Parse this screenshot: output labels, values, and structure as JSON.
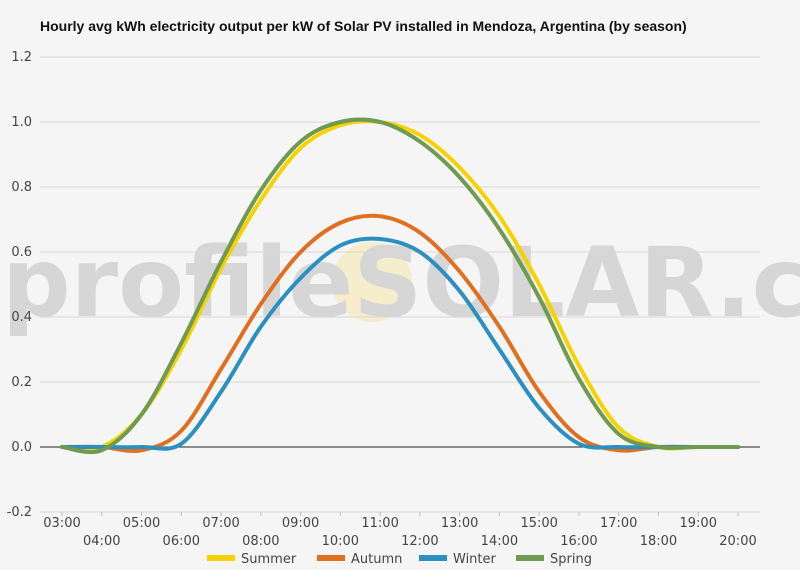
{
  "chart_data": {
    "type": "line",
    "title": "Hourly avg kWh electricity output per kW of Solar PV installed in Mendoza, Argentina (by season)",
    "xlabel": "",
    "ylabel": "",
    "x_ticks_upper": [
      "03:00",
      "05:00",
      "07:00",
      "09:00",
      "11:00",
      "13:00",
      "15:00",
      "17:00",
      "19:00"
    ],
    "x_ticks_lower": [
      "04:00",
      "06:00",
      "08:00",
      "10:00",
      "12:00",
      "14:00",
      "16:00",
      "18:00",
      "20:00"
    ],
    "y_ticks": [
      "-0.2",
      "0.0",
      "0.2",
      "0.4",
      "0.6",
      "0.8",
      "1.0",
      "1.2"
    ],
    "ylim": [
      -0.2,
      1.2
    ],
    "xlim": [
      3,
      20
    ],
    "grid": true,
    "legend_position": "bottom",
    "watermark": "profileSOLAR.com",
    "x": [
      3,
      4,
      5,
      6,
      7,
      8,
      9,
      10,
      11,
      12,
      13,
      14,
      15,
      16,
      17,
      18,
      19,
      20
    ],
    "series": [
      {
        "name": "Summer",
        "color": "#f5d300",
        "values": [
          0.0,
          0.0,
          0.1,
          0.3,
          0.55,
          0.76,
          0.92,
          0.99,
          1.0,
          0.96,
          0.86,
          0.71,
          0.5,
          0.25,
          0.06,
          0.0,
          0.0,
          0.0
        ]
      },
      {
        "name": "Autumn",
        "color": "#e07020",
        "values": [
          0.0,
          0.0,
          -0.01,
          0.05,
          0.24,
          0.44,
          0.6,
          0.69,
          0.71,
          0.66,
          0.54,
          0.37,
          0.17,
          0.03,
          -0.01,
          0.0,
          0.0,
          0.0
        ]
      },
      {
        "name": "Winter",
        "color": "#2b8fbf",
        "values": [
          0.0,
          0.0,
          0.0,
          0.01,
          0.17,
          0.37,
          0.52,
          0.62,
          0.64,
          0.6,
          0.48,
          0.3,
          0.12,
          0.01,
          0.0,
          0.0,
          0.0,
          0.0
        ]
      },
      {
        "name": "Spring",
        "color": "#6e9a52",
        "values": [
          0.0,
          -0.01,
          0.1,
          0.32,
          0.57,
          0.79,
          0.94,
          1.0,
          1.0,
          0.94,
          0.83,
          0.67,
          0.46,
          0.21,
          0.04,
          0.0,
          0.0,
          0.0
        ]
      }
    ]
  }
}
